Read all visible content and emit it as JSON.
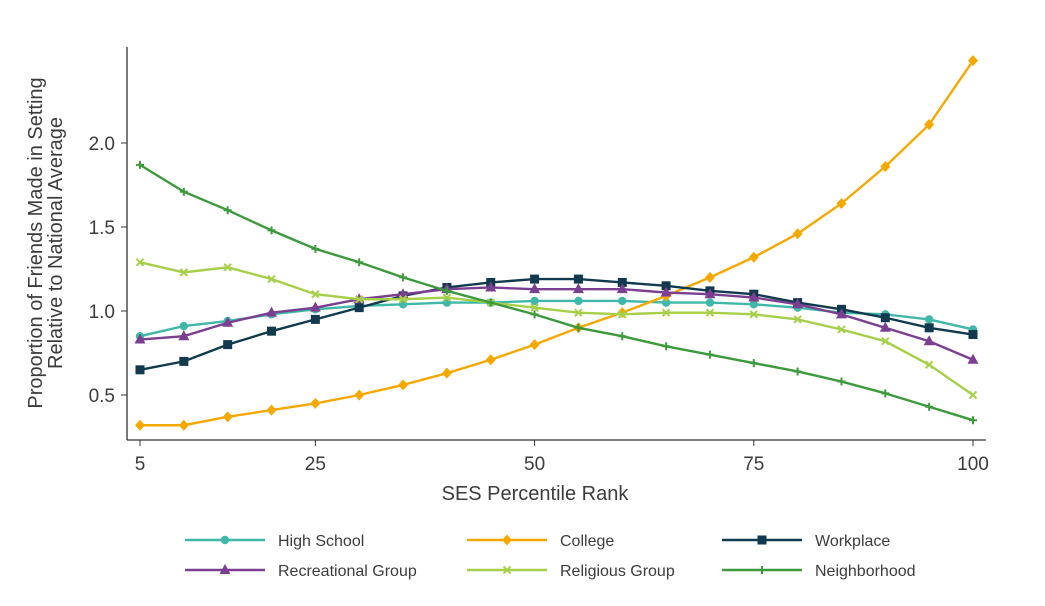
{
  "chart_data": {
    "type": "line",
    "title": "",
    "xlabel": "SES Percentile Rank",
    "ylabel": [
      "Proportion of Friends Made in Setting",
      "Relative to National Average"
    ],
    "xlim": [
      5,
      100
    ],
    "ylim": [
      0.3,
      2.5
    ],
    "xticks": [
      5,
      25,
      50,
      75,
      100
    ],
    "yticks": [
      0.5,
      1.0,
      1.5,
      2.0
    ],
    "ytick_labels": [
      "0.5",
      "1.0",
      "1.5",
      "2.0"
    ],
    "grid": false,
    "legend_position": "bottom",
    "x": [
      5,
      10,
      15,
      20,
      25,
      30,
      35,
      40,
      45,
      50,
      55,
      60,
      65,
      70,
      75,
      80,
      85,
      90,
      95,
      100
    ],
    "series": [
      {
        "name": "High School",
        "color": "#3fb8a8",
        "marker": "circle",
        "values": [
          0.85,
          0.91,
          0.94,
          0.98,
          1.01,
          1.03,
          1.04,
          1.05,
          1.05,
          1.06,
          1.06,
          1.06,
          1.05,
          1.05,
          1.04,
          1.02,
          0.99,
          0.98,
          0.95,
          0.89
        ]
      },
      {
        "name": "College",
        "color": "#f5a800",
        "marker": "diamond",
        "values": [
          0.32,
          0.32,
          0.37,
          0.41,
          0.45,
          0.5,
          0.56,
          0.63,
          0.71,
          0.8,
          0.9,
          0.99,
          1.09,
          1.2,
          1.32,
          1.46,
          1.64,
          1.86,
          2.11,
          2.49
        ]
      },
      {
        "name": "Workplace",
        "color": "#123a4e",
        "marker": "square",
        "values": [
          0.65,
          0.7,
          0.8,
          0.88,
          0.95,
          1.02,
          1.09,
          1.14,
          1.17,
          1.19,
          1.19,
          1.17,
          1.15,
          1.12,
          1.1,
          1.05,
          1.01,
          0.96,
          0.9,
          0.86
        ]
      },
      {
        "name": "Recreational Group",
        "color": "#7b3f91",
        "marker": "triangle",
        "values": [
          0.83,
          0.85,
          0.93,
          0.99,
          1.02,
          1.07,
          1.1,
          1.13,
          1.14,
          1.13,
          1.13,
          1.13,
          1.11,
          1.1,
          1.08,
          1.04,
          0.98,
          0.9,
          0.82,
          0.71
        ]
      },
      {
        "name": "Religious Group",
        "color": "#a6cf4a",
        "marker": "x",
        "values": [
          1.29,
          1.23,
          1.26,
          1.19,
          1.1,
          1.07,
          1.07,
          1.08,
          1.05,
          1.02,
          0.99,
          0.98,
          0.99,
          0.99,
          0.98,
          0.95,
          0.89,
          0.82,
          0.68,
          0.5
        ]
      },
      {
        "name": "Neighborhood",
        "color": "#3c9a3c",
        "marker": "plus",
        "values": [
          1.87,
          1.71,
          1.6,
          1.48,
          1.37,
          1.29,
          1.2,
          1.12,
          1.05,
          0.98,
          0.9,
          0.85,
          0.79,
          0.74,
          0.69,
          0.64,
          0.58,
          0.51,
          0.43,
          0.35
        ]
      }
    ]
  }
}
